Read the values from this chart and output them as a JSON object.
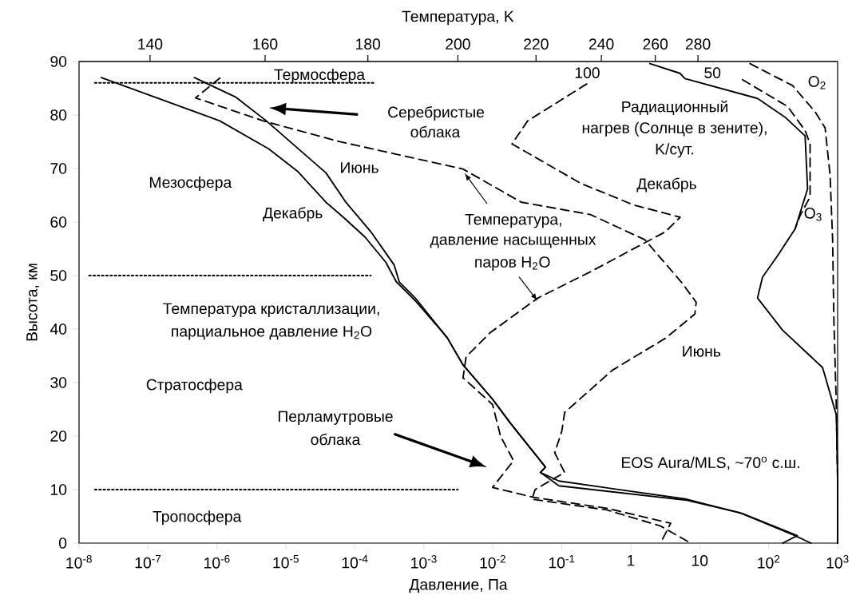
{
  "chart_data": {
    "type": "line",
    "xlabel": "Давление, Па",
    "ylabel": "Высота, км",
    "log": "x",
    "xlim": [
      1e-08,
      1000
    ],
    "ylim": [
      0,
      90
    ],
    "xticks": [
      {
        "value": 1e-08,
        "label": "10$^{-8}$"
      },
      {
        "value": 1e-07,
        "label": "10$^{-7}$"
      },
      {
        "value": 1e-06,
        "label": "10$^{-6}$"
      },
      {
        "value": 1e-05,
        "label": "10$^{-5}$"
      },
      {
        "value": 0.0001,
        "label": "10$^{-4}$"
      },
      {
        "value": 0.001,
        "label": "10$^{-3}$"
      },
      {
        "value": 0.01,
        "label": "10$^{-2}$"
      },
      {
        "value": 0.1,
        "label": "10$^{-1}$"
      },
      {
        "value": 1,
        "label": "1"
      },
      {
        "value": 10,
        "label": "10"
      },
      {
        "value": 100,
        "label": "10$^{2}$"
      },
      {
        "value": 1000,
        "label": "10$^{3}$"
      }
    ],
    "yticks": [
      0,
      10,
      20,
      30,
      40,
      50,
      60,
      70,
      80,
      90
    ],
    "x2lim": [
      303,
      0
    ],
    "x2ticks": [
      100,
      50
    ],
    "series": [
      {
        "color": "#000000",
        "line_style": "solid",
        "x": [
          2.1e-08,
          1.1e-06,
          5.6e-06,
          1.5e-05,
          3.8e-05,
          6.8e-05,
          0.00014,
          0.00028,
          0.0004,
          0.00075,
          0.0019,
          0.0022,
          0.0037,
          0.0099,
          0.018,
          0.049,
          0.058,
          0.049,
          0.091,
          6.5,
          42,
          260,
          160
        ],
        "values": [
          87.0,
          78.9,
          73.7,
          69.4,
          63.7,
          60.9,
          57.2,
          52.5,
          48.8,
          45.3,
          39.3,
          38.3,
          33.3,
          26.9,
          22.4,
          15.4,
          14.2,
          13.2,
          11.6,
          8.2,
          5.5,
          1.4,
          0
        ]
      },
      {
        "color": "#000000",
        "line_style": "solid",
        "x": [
          4.7e-07,
          1.9e-06,
          5.2e-06,
          3.8e-05,
          7.4e-05,
          0.00017,
          0.00037,
          0.00044,
          0.00075,
          0.0022,
          0.0037,
          0.0099,
          0.018,
          0.049,
          0.058,
          0.049,
          0.091,
          6.5,
          38,
          230,
          410
        ],
        "values": [
          87.0,
          83.3,
          78.9,
          69.2,
          63.7,
          58.2,
          52.0,
          48.8,
          45.8,
          38.3,
          33.3,
          26.9,
          22.4,
          15.4,
          14.2,
          13.2,
          10.7,
          8.0,
          5.7,
          1.5,
          0
        ]
      },
      {
        "color": "#000000",
        "line_style": "dashed",
        "x": [
          0.23,
          0.032,
          0.019,
          0.19,
          1.1,
          5.2,
          3.2,
          0.26,
          0.045,
          0.0091,
          0.0041,
          0.0037,
          0.0099,
          0.013,
          0.02,
          0.0099,
          0.041,
          0.45,
          3.8,
          2.7
        ],
        "values": [
          85.8,
          78.9,
          74.6,
          67.2,
          63.2,
          60.9,
          58.2,
          50.7,
          45.8,
          39.3,
          34.8,
          30.9,
          25.9,
          19.9,
          15.4,
          10.4,
          8.5,
          6.5,
          3.7,
          0
        ]
      },
      {
        "color": "#000000",
        "line_style": "dashed",
        "x": [
          1.1e-06,
          4.9e-07,
          4.7e-06,
          5.7e-05,
          0.0037,
          0.026,
          0.26,
          1.6,
          5.4,
          8.9,
          8.5,
          3.2,
          0.54,
          0.11,
          0.1,
          0.079,
          0.11,
          0.041,
          0.037,
          0.45,
          2.7,
          7.4
        ],
        "values": [
          86.9,
          83.2,
          78.9,
          75.1,
          69.9,
          63.7,
          61.4,
          56.7,
          48.8,
          45.0,
          42.8,
          38.3,
          32.3,
          24.4,
          20.9,
          16.9,
          13.2,
          10.0,
          8.2,
          6.2,
          3.2,
          0
        ]
      },
      {
        "color": "#000000",
        "line_style": "solid",
        "axis": "x2",
        "x": [
          75,
          63,
          61,
          32,
          21,
          13,
          12,
          17,
          24,
          30,
          32,
          22,
          6,
          0.5,
          0,
          0
        ],
        "values": [
          89.6,
          87.8,
          86.8,
          83.1,
          79.6,
          76.1,
          66.2,
          58.7,
          53.7,
          49.7,
          45.8,
          39.8,
          32.8,
          23.9,
          11.9,
          0
        ]
      },
      {
        "color": "#000000",
        "line_style": "dashed",
        "axis": "x2",
        "x": [
          35,
          18,
          9,
          5,
          3,
          2,
          1.5,
          0.6,
          0,
          0
        ],
        "values": [
          89.6,
          85.5,
          80.6,
          77.6,
          68.7,
          56.7,
          41.8,
          26.9,
          11.9,
          0
        ]
      },
      {
        "color": "#000000",
        "line_style": "dashed",
        "axis": "x2",
        "x": [
          38,
          20,
          13,
          11,
          11,
          15,
          17
        ],
        "values": [
          86.6,
          81.6,
          77.1,
          74.6,
          64.7,
          61.2,
          58.7
        ]
      },
      {
        "color": "#000000",
        "line_style": "dotted",
        "x": [
          1.7e-08,
          0.0002
        ],
        "values": [
          86,
          86
        ]
      },
      {
        "color": "#000000",
        "line_style": "dotted",
        "x": [
          1.4e-08,
          0.00017
        ],
        "values": [
          50,
          50
        ]
      },
      {
        "color": "#000000",
        "line_style": "dotted",
        "x": [
          1.7e-08,
          0.0031
        ],
        "values": [
          10,
          10
        ]
      }
    ],
    "annotations": [
      "Температура, K",
      "140",
      "160",
      "180",
      "200",
      "220",
      "240",
      "260",
      "280",
      "Термосфера",
      "Серебристые",
      "облака",
      "Мезосфера",
      "Июнь",
      "Декабрь",
      "Температура,",
      "давление насыщенных",
      "паров H$_{2}$O",
      "Радиационный",
      "нагрев (Солнце в зените),",
      "K/сут.",
      "Декабрь",
      "O$_{2}$",
      "O$_{3}$",
      "Температура кристаллизации,",
      "парциальное давление H$_{2}$O",
      "Стратосфера",
      "Перламутровые",
      "облака",
      "Тропосфера",
      "Июнь",
      "EOS Aura/MLS, ~70$^{o}$ с.ш."
    ]
  }
}
